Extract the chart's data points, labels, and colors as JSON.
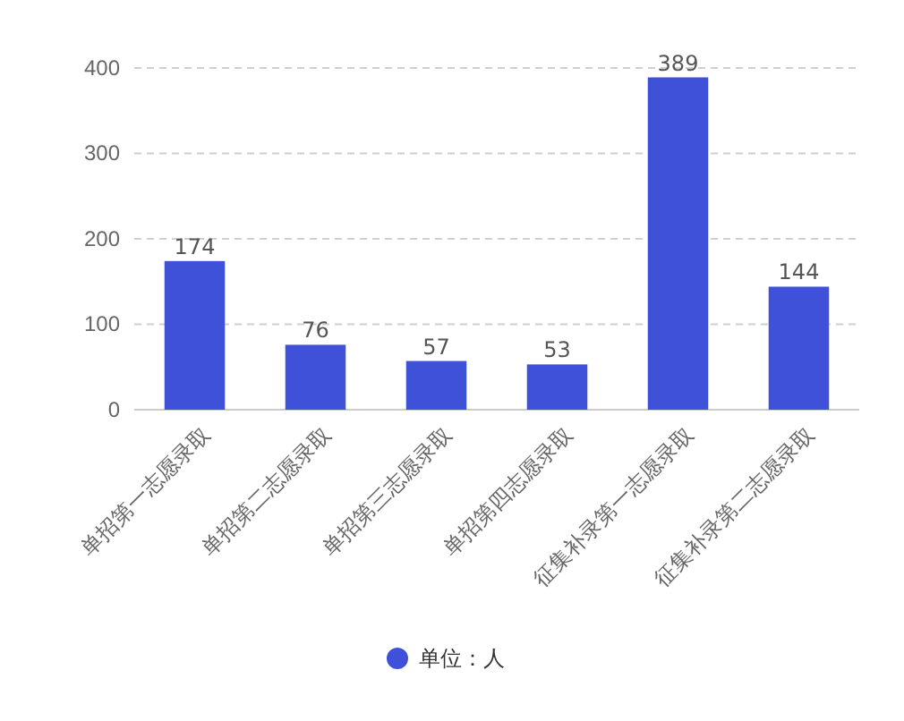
{
  "chart_data": {
    "type": "bar",
    "categories": [
      "单招第一志愿录取",
      "单招第二志愿录取",
      "单招第三志愿录取",
      "单招第四志愿录取",
      "征集补录第一志愿录取",
      "征集补录第二志愿录取"
    ],
    "series": [
      {
        "name": "单位：人",
        "color": "#3f51d8",
        "values": [
          174,
          76,
          57,
          53,
          389,
          144
        ]
      }
    ],
    "ylim": [
      0,
      400
    ],
    "yticks": [
      0,
      100,
      200,
      300,
      400
    ],
    "grid": "y",
    "legend": "bottom",
    "data_labels": true
  }
}
